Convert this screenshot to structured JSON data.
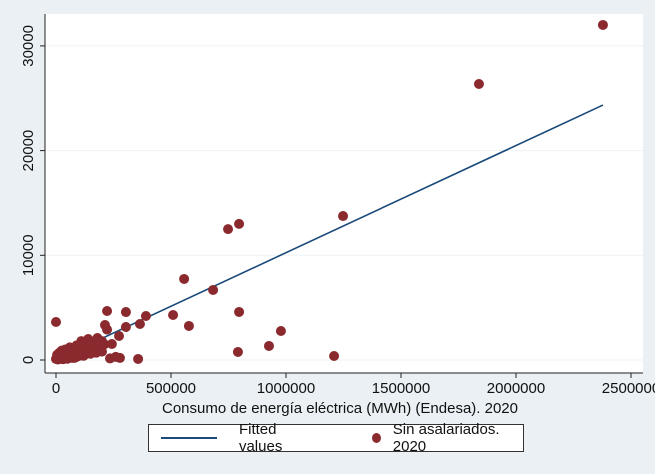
{
  "chart_data": {
    "type": "scatter",
    "title": "",
    "xlabel": "Consumo de energía eléctrica (MWh) (Endesa). 2020",
    "ylabel": "",
    "xlim": [
      -60000,
      2540000
    ],
    "ylim": [
      -1200,
      33000
    ],
    "xticks": [
      0,
      500000,
      1000000,
      1500000,
      2000000,
      2500000
    ],
    "xtick_labels": [
      "0",
      "500000",
      "1000000",
      "1500000",
      "2000000",
      "2500000"
    ],
    "yticks": [
      0,
      10000,
      20000,
      30000
    ],
    "ytick_labels": [
      "0",
      "10000",
      "20000",
      "30000"
    ],
    "grid": true,
    "legend": {
      "position": "bottom",
      "entries": [
        "Fitted values",
        "Sin asalariados. 2020"
      ]
    },
    "colors": {
      "points": "#8b2a2e",
      "line": "#1a4a7a",
      "background": "#eaf0f3",
      "plot": "#ffffff"
    },
    "fitted_line": {
      "name": "Fitted values",
      "x": [
        0,
        2378000
      ],
      "y": [
        20,
        24350
      ]
    },
    "series": [
      {
        "name": "Sin asalariados. 2020",
        "x": [
          2378000,
          1839000,
          1248000,
          796000,
          748000,
          557000,
          683000,
          796000,
          509000,
          578000,
          978000,
          926000,
          791000,
          1209000,
          0,
          222000,
          304000,
          391000,
          365000,
          304000,
          213000,
          222000,
          274000,
          243000,
          357000,
          278000,
          260000,
          235000,
          0,
          5000,
          10000,
          15000,
          20000,
          25000,
          30000,
          35000,
          40000,
          45000,
          50000,
          55000,
          60000,
          65000,
          70000,
          75000,
          80000,
          90000,
          95000,
          100000,
          110000,
          115000,
          120000,
          130000,
          140000,
          150000,
          160000,
          170000,
          180000,
          190000,
          200000,
          210000,
          5000,
          15000,
          25000,
          40000,
          60000,
          80000,
          100000,
          125000,
          150000,
          175000,
          200000,
          8000,
          30000,
          50000,
          70000,
          90000,
          120000,
          160000,
          190000
        ],
        "y": [
          32000,
          26360,
          13750,
          13000,
          12500,
          7740,
          6690,
          4590,
          4300,
          3250,
          2770,
          1340,
          770,
          380,
          3630,
          4680,
          4580,
          4200,
          3440,
          3150,
          3340,
          2900,
          2290,
          1530,
          100,
          200,
          300,
          150,
          100,
          500,
          300,
          700,
          200,
          900,
          400,
          600,
          1000,
          300,
          800,
          500,
          1200,
          700,
          400,
          1100,
          900,
          1400,
          600,
          1000,
          1800,
          1300,
          900,
          1600,
          2000,
          1200,
          1700,
          1500,
          2100,
          1000,
          1800,
          1500,
          200,
          100,
          300,
          150,
          250,
          200,
          400,
          500,
          600,
          700,
          800,
          50,
          80,
          120,
          200,
          300,
          400,
          900,
          1300
        ]
      }
    ]
  }
}
